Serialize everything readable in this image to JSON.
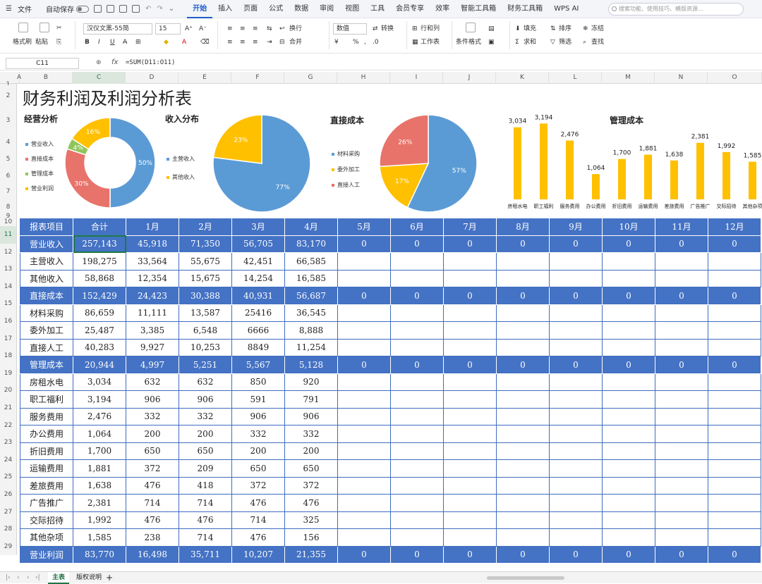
{
  "menubar": {
    "file": "文件",
    "autosave": "自动保存",
    "tabs": [
      "开始",
      "插入",
      "页面",
      "公式",
      "数据",
      "审阅",
      "视图",
      "工具",
      "会员专享",
      "效率",
      "智能工具箱",
      "财务工具箱",
      "WPS AI"
    ],
    "active_tab": "开始",
    "search_placeholder": "搜索功能、使用技巧、模版资源..."
  },
  "ribbon": {
    "format_painter": "格式刷",
    "paste": "粘贴",
    "font_name": "汉仪文黑-55简",
    "font_size": "15",
    "wrap": "换行",
    "merge": "合并",
    "number_format": "数值",
    "convert": "转换",
    "rows_cols": "行和列",
    "worksheet": "工作表",
    "cond_format": "条件格式",
    "fill": "填充",
    "sort": "排序",
    "freeze": "冻结",
    "sum": "求和",
    "filter": "筛选",
    "find": "查找"
  },
  "formula_bar": {
    "cell": "C11",
    "fx": "fx",
    "formula": "=SUM(D11:O11)"
  },
  "columns": [
    "A",
    "B",
    "C",
    "D",
    "E",
    "F",
    "G",
    "H",
    "I",
    "J",
    "K",
    "L",
    "M",
    "N",
    "O"
  ],
  "rows": [
    "1",
    "2",
    "3",
    "4",
    "5",
    "6",
    "7",
    "8",
    "9",
    "10",
    "11",
    "12",
    "13",
    "14",
    "15",
    "16",
    "17",
    "18",
    "19",
    "20",
    "21",
    "22",
    "23",
    "24",
    "25",
    "26",
    "27",
    "28",
    "29"
  ],
  "sheet": {
    "title": "财务利润及利润分析表"
  },
  "charts": [
    {
      "title": "经营分析",
      "chart_data": {
        "type": "pie",
        "categories": [
          "营业收入",
          "直接成本",
          "管理成本",
          "营业利润"
        ],
        "values": [
          50,
          30,
          4,
          16
        ],
        "labels": [
          "50%",
          "30%",
          "4%",
          "16%"
        ],
        "colors": [
          "#5b9bd5",
          "#e8736b",
          "#8fc55a",
          "#ffc000"
        ],
        "donut": true
      }
    },
    {
      "title": "收入分布",
      "chart_data": {
        "type": "pie",
        "categories": [
          "主营收入",
          "其他收入"
        ],
        "values": [
          77,
          23
        ],
        "labels": [
          "77%",
          "23%"
        ],
        "colors": [
          "#5b9bd5",
          "#ffc000"
        ]
      }
    },
    {
      "title": "直接成本",
      "chart_data": {
        "type": "pie",
        "categories": [
          "材料采购",
          "委外加工",
          "直接人工"
        ],
        "values": [
          57,
          17,
          26
        ],
        "labels": [
          "57%",
          "17%",
          "26%"
        ],
        "colors": [
          "#5b9bd5",
          "#ffc000",
          "#e8736b"
        ]
      }
    },
    {
      "title": "管理成本",
      "chart_data": {
        "type": "bar",
        "categories": [
          "房租水电",
          "职工福利",
          "服务费用",
          "办公费用",
          "折旧费用",
          "运输费用",
          "差旅费用",
          "广告推广",
          "交际招待",
          "其他杂项"
        ],
        "values": [
          3034,
          3194,
          2476,
          1064,
          1700,
          1881,
          1638,
          2381,
          1992,
          1585
        ],
        "labels": [
          "3,034",
          "3,194",
          "2,476",
          "1,064",
          "1,700",
          "1,881",
          "1,638",
          "2,381",
          "1,992",
          "1,585"
        ],
        "color": "#ffc000",
        "ylim": [
          0,
          3500
        ]
      }
    }
  ],
  "table": {
    "header": [
      "报表项目",
      "合计",
      "1月",
      "2月",
      "3月",
      "4月",
      "5月",
      "6月",
      "7月",
      "8月",
      "9月",
      "10月",
      "11月",
      "12月"
    ],
    "rows": [
      {
        "hl": true,
        "cells": [
          "营业收入",
          "257,143",
          "45,918",
          "71,350",
          "56,705",
          "83,170",
          "0",
          "0",
          "0",
          "0",
          "0",
          "0",
          "0",
          "0"
        ]
      },
      {
        "hl": false,
        "cells": [
          "主营收入",
          "198,275",
          "33,564",
          "55,675",
          "42,451",
          "66,585",
          "",
          "",
          "",
          "",
          "",
          "",
          "",
          ""
        ]
      },
      {
        "hl": false,
        "cells": [
          "其他收入",
          "58,868",
          "12,354",
          "15,675",
          "14,254",
          "16,585",
          "",
          "",
          "",
          "",
          "",
          "",
          "",
          ""
        ]
      },
      {
        "hl": true,
        "cells": [
          "直接成本",
          "152,429",
          "24,423",
          "30,388",
          "40,931",
          "56,687",
          "0",
          "0",
          "0",
          "0",
          "0",
          "0",
          "0",
          "0"
        ]
      },
      {
        "hl": false,
        "cells": [
          "材料采购",
          "86,659",
          "11,111",
          "13,587",
          "25416",
          "36,545",
          "",
          "",
          "",
          "",
          "",
          "",
          "",
          ""
        ]
      },
      {
        "hl": false,
        "cells": [
          "委外加工",
          "25,487",
          "3,385",
          "6,548",
          "6666",
          "8,888",
          "",
          "",
          "",
          "",
          "",
          "",
          "",
          ""
        ]
      },
      {
        "hl": false,
        "cells": [
          "直接人工",
          "40,283",
          "9,927",
          "10,253",
          "8849",
          "11,254",
          "",
          "",
          "",
          "",
          "",
          "",
          "",
          ""
        ]
      },
      {
        "hl": true,
        "cells": [
          "管理成本",
          "20,944",
          "4,997",
          "5,251",
          "5,567",
          "5,128",
          "0",
          "0",
          "0",
          "0",
          "0",
          "0",
          "0",
          "0"
        ]
      },
      {
        "hl": false,
        "cells": [
          "房租水电",
          "3,034",
          "632",
          "632",
          "850",
          "920",
          "",
          "",
          "",
          "",
          "",
          "",
          "",
          ""
        ]
      },
      {
        "hl": false,
        "cells": [
          "职工福利",
          "3,194",
          "906",
          "906",
          "591",
          "791",
          "",
          "",
          "",
          "",
          "",
          "",
          "",
          ""
        ]
      },
      {
        "hl": false,
        "cells": [
          "服务费用",
          "2,476",
          "332",
          "332",
          "906",
          "906",
          "",
          "",
          "",
          "",
          "",
          "",
          "",
          ""
        ]
      },
      {
        "hl": false,
        "cells": [
          "办公费用",
          "1,064",
          "200",
          "200",
          "332",
          "332",
          "",
          "",
          "",
          "",
          "",
          "",
          "",
          ""
        ]
      },
      {
        "hl": false,
        "cells": [
          "折旧费用",
          "1,700",
          "650",
          "650",
          "200",
          "200",
          "",
          "",
          "",
          "",
          "",
          "",
          "",
          ""
        ]
      },
      {
        "hl": false,
        "cells": [
          "运输费用",
          "1,881",
          "372",
          "209",
          "650",
          "650",
          "",
          "",
          "",
          "",
          "",
          "",
          "",
          ""
        ]
      },
      {
        "hl": false,
        "cells": [
          "差旅费用",
          "1,638",
          "476",
          "418",
          "372",
          "372",
          "",
          "",
          "",
          "",
          "",
          "",
          "",
          ""
        ]
      },
      {
        "hl": false,
        "cells": [
          "广告推广",
          "2,381",
          "714",
          "714",
          "476",
          "476",
          "",
          "",
          "",
          "",
          "",
          "",
          "",
          ""
        ]
      },
      {
        "hl": false,
        "cells": [
          "交际招待",
          "1,992",
          "476",
          "476",
          "714",
          "325",
          "",
          "",
          "",
          "",
          "",
          "",
          "",
          ""
        ]
      },
      {
        "hl": false,
        "cells": [
          "其他杂项",
          "1,585",
          "238",
          "714",
          "476",
          "156",
          "",
          "",
          "",
          "",
          "",
          "",
          "",
          ""
        ]
      },
      {
        "hl": true,
        "cells": [
          "营业利润",
          "83,770",
          "16,498",
          "35,711",
          "10,207",
          "21,355",
          "0",
          "0",
          "0",
          "0",
          "0",
          "0",
          "0",
          "0"
        ]
      }
    ]
  },
  "statusbar": {
    "sheets": [
      "主表",
      "版权说明"
    ],
    "active": "主表",
    "add": "+"
  }
}
